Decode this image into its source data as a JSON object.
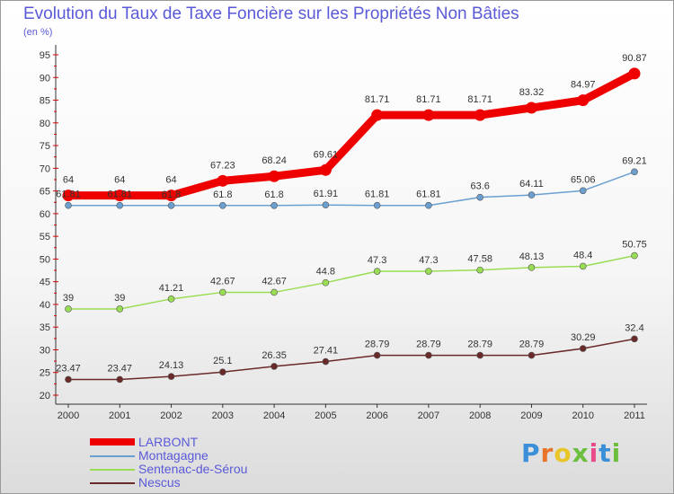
{
  "header": {
    "title": "Evolution du Taux de Taxe Foncière sur les Propriétés Non Bâties",
    "subtitle": "(en %)"
  },
  "logo": {
    "text": "Proxiti",
    "colors": [
      "#3b8fd8",
      "#e8742a",
      "#e8c62a",
      "#6cbf3c",
      "#e84c8a",
      "#3b8fd8",
      "#6cbf3c"
    ]
  },
  "chart_data": {
    "type": "line",
    "title": "Evolution du Taux de Taxe Foncière sur les Propriétés Non Bâties",
    "ylabel": "(en %)",
    "xlabel": "",
    "categories": [
      "2000",
      "2001",
      "2002",
      "2003",
      "2004",
      "2005",
      "2006",
      "2007",
      "2008",
      "2009",
      "2010",
      "2011"
    ],
    "ylim": [
      20,
      95
    ],
    "yticks": [
      "20",
      "25",
      "30",
      "35",
      "40",
      "45",
      "50",
      "55",
      "60",
      "65",
      "70",
      "75",
      "80",
      "85",
      "90",
      "95"
    ],
    "grid": false,
    "legend_position": "bottom-left",
    "series": [
      {
        "name": "LARBONT",
        "color": "#ee0000",
        "emphasis": true,
        "values": [
          64,
          64,
          64,
          67.23,
          68.24,
          69.61,
          81.71,
          81.71,
          81.71,
          83.32,
          84.97,
          90.87
        ],
        "labels": [
          "64",
          "64",
          "64",
          "67.23",
          "68.24",
          "69.61",
          "81.71",
          "81.71",
          "81.71",
          "83.32",
          "84.97",
          "90.87"
        ]
      },
      {
        "name": "Montagagne",
        "color": "#6a9fd0",
        "emphasis": false,
        "values": [
          61.81,
          61.81,
          61.8,
          61.8,
          61.8,
          61.91,
          61.81,
          61.81,
          63.6,
          64.11,
          65.06,
          69.21
        ],
        "labels": [
          "61.81",
          "61.81",
          "61.8",
          "61.8",
          "61.8",
          "61.91",
          "61.81",
          "61.81",
          "63.6",
          "64.11",
          "65.06",
          "69.21"
        ]
      },
      {
        "name": "Sentenac-de-Sérou",
        "color": "#99dd55",
        "emphasis": false,
        "values": [
          39,
          39,
          41.21,
          42.67,
          42.67,
          44.8,
          47.3,
          47.3,
          47.58,
          48.13,
          48.4,
          50.75
        ],
        "labels": [
          "39",
          "39",
          "41.21",
          "42.67",
          "42.67",
          "44.8",
          "47.3",
          "47.3",
          "47.58",
          "48.13",
          "48.4",
          "50.75"
        ]
      },
      {
        "name": "Nescus",
        "color": "#6b2a2a",
        "emphasis": false,
        "values": [
          23.47,
          23.47,
          24.13,
          25.1,
          26.35,
          27.41,
          28.79,
          28.79,
          28.79,
          28.79,
          30.29,
          32.4
        ],
        "labels": [
          "23.47",
          "23.47",
          "24.13",
          "25.1",
          "26.35",
          "27.41",
          "28.79",
          "28.79",
          "28.79",
          "28.79",
          "30.29",
          "32.4"
        ]
      }
    ]
  }
}
